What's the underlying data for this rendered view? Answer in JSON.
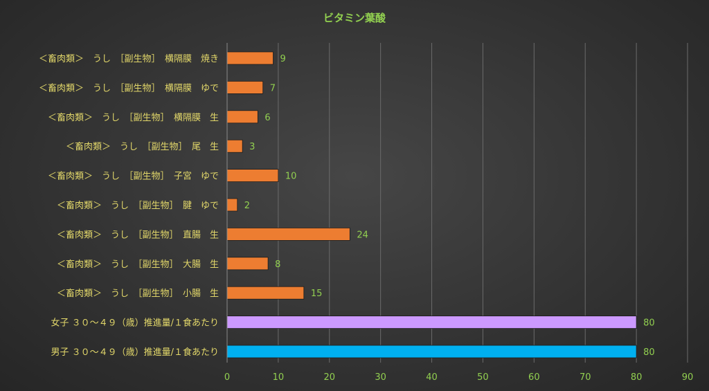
{
  "chart_data": {
    "type": "bar",
    "orientation": "horizontal",
    "title": "ビタミン葉酸",
    "xlabel": "",
    "ylabel": "",
    "xlim": [
      0,
      90
    ],
    "ticks": [
      0,
      10,
      20,
      30,
      40,
      50,
      60,
      70,
      80,
      90
    ],
    "grid": true,
    "legend": "none",
    "categories": [
      "＜畜肉類＞　うし　［副生物］　横隔膜　焼き",
      "＜畜肉類＞　うし　［副生物］　横隔膜　ゆで",
      "＜畜肉類＞　うし　［副生物］　横隔膜　生",
      "＜畜肉類＞　うし　［副生物］　尾　生",
      "＜畜肉類＞　うし　［副生物］　子宮　ゆで",
      "＜畜肉類＞　うし　［副生物］　腱　ゆで",
      "＜畜肉類＞　うし　［副生物］　直腸　生",
      "＜畜肉類＞　うし　［副生物］　大腸　生",
      "＜畜肉類＞　うし　［副生物］　小腸　生",
      "女子 ３０～４９（歳）推進量/１食あたり",
      "男子 ３０～４９（歳）推進量/１食あたり"
    ],
    "values": [
      9,
      7,
      6,
      3,
      10,
      2,
      24,
      8,
      15,
      80,
      80
    ],
    "bar_colors": [
      "#ed7d31",
      "#ed7d31",
      "#ed7d31",
      "#ed7d31",
      "#ed7d31",
      "#ed7d31",
      "#ed7d31",
      "#ed7d31",
      "#ed7d31",
      "#cc99ff",
      "#00b0f0"
    ],
    "colors": {
      "title": "#92d050",
      "category_labels": "#e3d86a",
      "tick_labels": "#92d050",
      "data_labels": "#92d050",
      "gridlines": "#6b6b6b",
      "axis": "#8a8a8a"
    }
  }
}
